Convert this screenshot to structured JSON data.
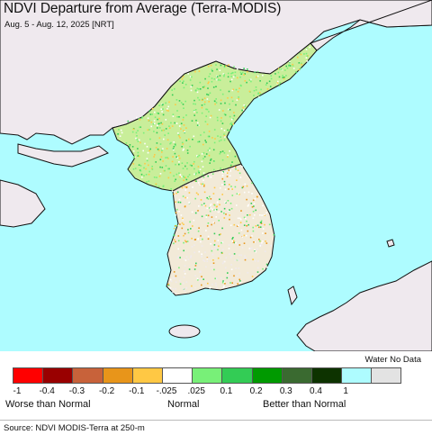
{
  "title": "NDVI Departure from Average (Terra-MODIS)",
  "subtitle": "Aug. 5 - Aug. 12, 2025 [NRT]",
  "colors": {
    "water": "#aefcff",
    "land_other": "#efe9ee",
    "land_normal": "#f4f2ee",
    "coast": "#111111"
  },
  "legend": {
    "no_data_label": "Water No Data",
    "swatches": [
      "#ff0000",
      "#990000",
      "#c8623a",
      "#e8951a",
      "#ffc844",
      "#ffffff",
      "#78f078",
      "#33cc55",
      "#009a00",
      "#3a6a30",
      "#0d3300",
      "#aefcff",
      "#e3e3e3"
    ],
    "tick_labels": [
      "-1",
      "-0.4",
      "-0.3",
      "-0.2",
      "-0.1",
      "-.025",
      ".025",
      "0.1",
      "0.2",
      "0.3",
      "0.4",
      "1"
    ],
    "category_labels": [
      "Worse than Normal",
      "Normal",
      "Better than Normal"
    ]
  },
  "source": "Source: NDVI MODIS-Terra at 250-m"
}
